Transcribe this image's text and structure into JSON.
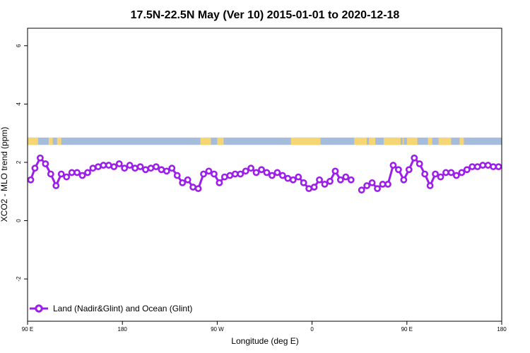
{
  "chart_data": {
    "type": "line",
    "title": "17.5N-22.5N May (Ver 10)   2015-01-01 to 2020-12-18",
    "xlabel": "Longitude (deg E)",
    "ylabel": "XCO2 - MLO trend (ppm)",
    "x_ticks": [
      {
        "value": 90,
        "label": "90 E"
      },
      {
        "value": 180,
        "label": "180"
      },
      {
        "value": 270,
        "label": "90 W"
      },
      {
        "value": 360,
        "label": "0"
      },
      {
        "value": 450,
        "label": "90 E"
      },
      {
        "value": 540,
        "label": "180"
      }
    ],
    "y_ticks": [
      {
        "value": -2,
        "label": "-2"
      },
      {
        "value": 0,
        "label": "0"
      },
      {
        "value": 2,
        "label": "2"
      },
      {
        "value": 4,
        "label": "4"
      },
      {
        "value": 6,
        "label": "6"
      }
    ],
    "xlim": [
      90,
      540
    ],
    "ylim": [
      -3.45,
      6.6
    ],
    "grid": false,
    "legend_position": "bottom-left",
    "colors": {
      "series": "#9b1fe8",
      "land": "#f5d574",
      "ocean": "#a6bcdc"
    },
    "land_mask_band": {
      "y_range": [
        2.6,
        2.85
      ],
      "land_segments_lon": [
        [
          90,
          100
        ],
        [
          110,
          114
        ],
        [
          118,
          122
        ],
        [
          254,
          264
        ],
        [
          270,
          274
        ],
        [
          274,
          276
        ],
        [
          340,
          368
        ],
        [
          400,
          403
        ],
        [
          403,
          412
        ],
        [
          414,
          420
        ],
        [
          428,
          444
        ],
        [
          446,
          447
        ],
        [
          450,
          460
        ],
        [
          470,
          474
        ],
        [
          480,
          492
        ],
        [
          500,
          504
        ]
      ]
    },
    "series": [
      {
        "name": "Land (Nadir&Glint) and Ocean (Glint)",
        "points": [
          [
            93,
            1.4
          ],
          [
            97,
            1.8
          ],
          [
            102,
            2.15
          ],
          [
            107,
            1.95
          ],
          [
            112,
            1.6
          ],
          [
            117,
            1.2
          ],
          [
            122,
            1.6
          ],
          [
            127,
            1.5
          ],
          [
            132,
            1.65
          ],
          [
            137,
            1.65
          ],
          [
            142,
            1.55
          ],
          [
            147,
            1.65
          ],
          [
            152,
            1.8
          ],
          [
            157,
            1.85
          ],
          [
            162,
            1.9
          ],
          [
            167,
            1.9
          ],
          [
            172,
            1.85
          ],
          [
            177,
            1.95
          ],
          [
            182,
            1.8
          ],
          [
            187,
            1.9
          ],
          [
            192,
            1.8
          ],
          [
            197,
            1.85
          ],
          [
            202,
            1.75
          ],
          [
            207,
            1.8
          ],
          [
            212,
            1.85
          ],
          [
            217,
            1.75
          ],
          [
            222,
            1.7
          ],
          [
            227,
            1.8
          ],
          [
            232,
            1.55
          ],
          [
            237,
            1.3
          ],
          [
            242,
            1.4
          ],
          [
            247,
            1.15
          ],
          [
            252,
            1.1
          ],
          [
            257,
            1.6
          ],
          [
            262,
            1.7
          ],
          [
            267,
            1.6
          ],
          [
            272,
            1.3
          ],
          [
            277,
            1.5
          ],
          [
            282,
            1.55
          ],
          [
            287,
            1.6
          ],
          [
            292,
            1.6
          ],
          [
            297,
            1.7
          ],
          [
            302,
            1.8
          ],
          [
            307,
            1.65
          ],
          [
            312,
            1.75
          ],
          [
            317,
            1.65
          ],
          [
            322,
            1.55
          ],
          [
            327,
            1.65
          ],
          [
            332,
            1.55
          ],
          [
            337,
            1.45
          ],
          [
            342,
            1.4
          ],
          [
            347,
            1.5
          ],
          [
            352,
            1.3
          ],
          [
            357,
            1.1
          ],
          [
            362,
            1.15
          ],
          [
            367,
            1.4
          ],
          [
            372,
            1.25
          ],
          [
            377,
            1.35
          ],
          [
            382,
            1.7
          ],
          [
            387,
            1.4
          ],
          [
            392,
            1.5
          ],
          [
            397,
            1.4
          ],
          null,
          [
            407,
            1.05
          ],
          [
            412,
            1.2
          ],
          [
            417,
            1.3
          ],
          [
            422,
            1.1
          ],
          [
            427,
            1.25
          ],
          [
            432,
            1.25
          ],
          [
            437,
            1.9
          ],
          [
            442,
            1.75
          ],
          [
            447,
            1.4
          ],
          [
            452,
            1.75
          ],
          [
            457,
            2.15
          ],
          [
            462,
            1.95
          ],
          [
            467,
            1.6
          ],
          [
            472,
            1.2
          ],
          [
            477,
            1.6
          ],
          [
            482,
            1.5
          ],
          [
            487,
            1.65
          ],
          [
            492,
            1.65
          ],
          [
            497,
            1.55
          ],
          [
            502,
            1.65
          ],
          [
            507,
            1.75
          ],
          [
            512,
            1.85
          ],
          [
            517,
            1.85
          ],
          [
            522,
            1.9
          ],
          [
            527,
            1.9
          ],
          [
            532,
            1.85
          ],
          [
            537,
            1.85
          ]
        ]
      }
    ]
  }
}
